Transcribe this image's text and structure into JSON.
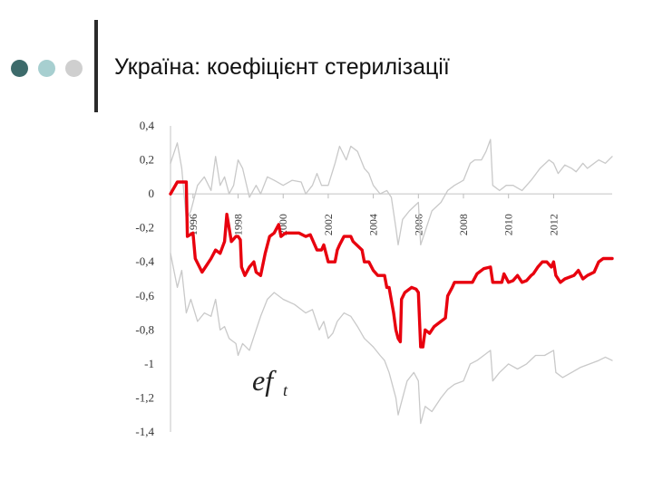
{
  "slide": {
    "title": "Україна: коефіцієнт стерилізації",
    "bullet_colors": [
      "#3d6b6b",
      "#a7cfd0",
      "#cfcfcf"
    ]
  },
  "chart_data": {
    "type": "line",
    "title": "",
    "xlabel": "",
    "ylabel": "",
    "annotation": {
      "main": "ef",
      "sub": "t"
    },
    "ylim": [
      -1.4,
      0.4
    ],
    "xlim": [
      1995,
      2014.6
    ],
    "y_ticks": [
      0.4,
      0.2,
      0,
      -0.2,
      -0.4,
      -0.6,
      -0.8,
      -1,
      -1.2,
      -1.4
    ],
    "y_tick_labels": [
      "0,4",
      "0,2",
      "0",
      "-0,2",
      "-0,4",
      "-0,6",
      "-0,8",
      "-1",
      "-1,2",
      "-1,4"
    ],
    "x_ticks": [
      1996,
      1998,
      2000,
      2002,
      2004,
      2006,
      2008,
      2010,
      2012
    ],
    "x_tick_labels": [
      "1996",
      "1998",
      "2000",
      "2002",
      "2004",
      "2006",
      "2008",
      "2010",
      "2012"
    ],
    "grid": false,
    "legend": "none",
    "series": [
      {
        "color": "#e8000e",
        "role": "estimate",
        "points": [
          [
            1995.0,
            0.0
          ],
          [
            1995.3,
            0.07
          ],
          [
            1995.7,
            0.07
          ],
          [
            1995.75,
            -0.25
          ],
          [
            1996.0,
            -0.23
          ],
          [
            1996.1,
            -0.38
          ],
          [
            1996.4,
            -0.46
          ],
          [
            1996.6,
            -0.42
          ],
          [
            1996.8,
            -0.38
          ],
          [
            1997.0,
            -0.33
          ],
          [
            1997.2,
            -0.35
          ],
          [
            1997.4,
            -0.28
          ],
          [
            1997.5,
            -0.12
          ],
          [
            1997.7,
            -0.28
          ],
          [
            1997.9,
            -0.25
          ],
          [
            1998.0,
            -0.25
          ],
          [
            1998.1,
            -0.27
          ],
          [
            1998.15,
            -0.43
          ],
          [
            1998.3,
            -0.48
          ],
          [
            1998.5,
            -0.43
          ],
          [
            1998.7,
            -0.4
          ],
          [
            1998.8,
            -0.46
          ],
          [
            1999.0,
            -0.48
          ],
          [
            1999.2,
            -0.35
          ],
          [
            1999.4,
            -0.25
          ],
          [
            1999.6,
            -0.23
          ],
          [
            1999.8,
            -0.18
          ],
          [
            1999.9,
            -0.25
          ],
          [
            2000.1,
            -0.23
          ],
          [
            2000.7,
            -0.23
          ],
          [
            2001.0,
            -0.25
          ],
          [
            2001.2,
            -0.24
          ],
          [
            2001.5,
            -0.33
          ],
          [
            2001.7,
            -0.33
          ],
          [
            2001.8,
            -0.3
          ],
          [
            2002.0,
            -0.4
          ],
          [
            2002.3,
            -0.4
          ],
          [
            2002.4,
            -0.33
          ],
          [
            2002.5,
            -0.3
          ],
          [
            2002.7,
            -0.25
          ],
          [
            2003.0,
            -0.25
          ],
          [
            2003.1,
            -0.28
          ],
          [
            2003.5,
            -0.33
          ],
          [
            2003.6,
            -0.4
          ],
          [
            2003.8,
            -0.4
          ],
          [
            2004.0,
            -0.45
          ],
          [
            2004.2,
            -0.48
          ],
          [
            2004.5,
            -0.48
          ],
          [
            2004.6,
            -0.55
          ],
          [
            2004.7,
            -0.55
          ],
          [
            2004.9,
            -0.7
          ],
          [
            2005.0,
            -0.8
          ],
          [
            2005.1,
            -0.85
          ],
          [
            2005.2,
            -0.87
          ],
          [
            2005.25,
            -0.62
          ],
          [
            2005.4,
            -0.58
          ],
          [
            2005.7,
            -0.55
          ],
          [
            2005.9,
            -0.56
          ],
          [
            2006.0,
            -0.58
          ],
          [
            2006.1,
            -0.9
          ],
          [
            2006.2,
            -0.9
          ],
          [
            2006.3,
            -0.8
          ],
          [
            2006.5,
            -0.82
          ],
          [
            2006.7,
            -0.78
          ],
          [
            2007.0,
            -0.75
          ],
          [
            2007.2,
            -0.73
          ],
          [
            2007.3,
            -0.6
          ],
          [
            2007.5,
            -0.55
          ],
          [
            2007.6,
            -0.52
          ],
          [
            2008.0,
            -0.52
          ],
          [
            2008.4,
            -0.52
          ],
          [
            2008.6,
            -0.47
          ],
          [
            2008.9,
            -0.44
          ],
          [
            2009.2,
            -0.43
          ],
          [
            2009.3,
            -0.52
          ],
          [
            2009.7,
            -0.52
          ],
          [
            2009.8,
            -0.47
          ],
          [
            2010.0,
            -0.52
          ],
          [
            2010.2,
            -0.51
          ],
          [
            2010.4,
            -0.48
          ],
          [
            2010.6,
            -0.52
          ],
          [
            2010.8,
            -0.51
          ],
          [
            2011.0,
            -0.48
          ],
          [
            2011.1,
            -0.47
          ],
          [
            2011.3,
            -0.43
          ],
          [
            2011.5,
            -0.4
          ],
          [
            2011.7,
            -0.4
          ],
          [
            2011.9,
            -0.43
          ],
          [
            2012.0,
            -0.4
          ],
          [
            2012.1,
            -0.48
          ],
          [
            2012.3,
            -0.52
          ],
          [
            2012.5,
            -0.5
          ],
          [
            2012.9,
            -0.48
          ],
          [
            2013.1,
            -0.45
          ],
          [
            2013.3,
            -0.5
          ],
          [
            2013.5,
            -0.48
          ],
          [
            2013.8,
            -0.46
          ],
          [
            2014.0,
            -0.4
          ],
          [
            2014.2,
            -0.38
          ],
          [
            2014.6,
            -0.38
          ]
        ]
      },
      {
        "color": "#c9c9c9",
        "role": "upper band",
        "points": [
          [
            1995.0,
            0.18
          ],
          [
            1995.3,
            0.3
          ],
          [
            1995.5,
            0.15
          ],
          [
            1995.7,
            -0.15
          ],
          [
            1995.9,
            -0.1
          ],
          [
            1996.2,
            0.05
          ],
          [
            1996.5,
            0.1
          ],
          [
            1996.8,
            0.02
          ],
          [
            1997.0,
            0.22
          ],
          [
            1997.2,
            0.05
          ],
          [
            1997.4,
            0.1
          ],
          [
            1997.6,
            0.0
          ],
          [
            1997.8,
            0.05
          ],
          [
            1998.0,
            0.2
          ],
          [
            1998.2,
            0.15
          ],
          [
            1998.5,
            -0.02
          ],
          [
            1998.8,
            0.05
          ],
          [
            1999.0,
            0.0
          ],
          [
            1999.3,
            0.1
          ],
          [
            1999.6,
            0.08
          ],
          [
            2000.0,
            0.05
          ],
          [
            2000.4,
            0.08
          ],
          [
            2000.8,
            0.07
          ],
          [
            2001.0,
            0.0
          ],
          [
            2001.3,
            0.05
          ],
          [
            2001.5,
            0.12
          ],
          [
            2001.7,
            0.05
          ],
          [
            2002.0,
            0.05
          ],
          [
            2002.3,
            0.18
          ],
          [
            2002.5,
            0.28
          ],
          [
            2002.8,
            0.2
          ],
          [
            2003.0,
            0.28
          ],
          [
            2003.3,
            0.25
          ],
          [
            2003.6,
            0.15
          ],
          [
            2003.8,
            0.12
          ],
          [
            2004.0,
            0.05
          ],
          [
            2004.3,
            0.0
          ],
          [
            2004.6,
            0.02
          ],
          [
            2004.8,
            -0.02
          ],
          [
            2005.0,
            -0.2
          ],
          [
            2005.1,
            -0.3
          ],
          [
            2005.3,
            -0.15
          ],
          [
            2005.6,
            -0.1
          ],
          [
            2006.0,
            -0.05
          ],
          [
            2006.1,
            -0.3
          ],
          [
            2006.3,
            -0.22
          ],
          [
            2006.6,
            -0.1
          ],
          [
            2007.0,
            -0.05
          ],
          [
            2007.3,
            0.02
          ],
          [
            2007.6,
            0.05
          ],
          [
            2008.0,
            0.08
          ],
          [
            2008.3,
            0.18
          ],
          [
            2008.5,
            0.2
          ],
          [
            2008.8,
            0.2
          ],
          [
            2009.0,
            0.25
          ],
          [
            2009.2,
            0.32
          ],
          [
            2009.3,
            0.05
          ],
          [
            2009.6,
            0.02
          ],
          [
            2009.9,
            0.05
          ],
          [
            2010.2,
            0.05
          ],
          [
            2010.6,
            0.02
          ],
          [
            2011.0,
            0.08
          ],
          [
            2011.4,
            0.15
          ],
          [
            2011.8,
            0.2
          ],
          [
            2012.0,
            0.18
          ],
          [
            2012.2,
            0.12
          ],
          [
            2012.5,
            0.17
          ],
          [
            2012.8,
            0.15
          ],
          [
            2013.0,
            0.13
          ],
          [
            2013.3,
            0.18
          ],
          [
            2013.5,
            0.15
          ],
          [
            2013.8,
            0.18
          ],
          [
            2014.0,
            0.2
          ],
          [
            2014.3,
            0.18
          ],
          [
            2014.6,
            0.22
          ]
        ]
      },
      {
        "color": "#c9c9c9",
        "role": "lower band",
        "points": [
          [
            1995.0,
            -0.35
          ],
          [
            1995.3,
            -0.55
          ],
          [
            1995.5,
            -0.45
          ],
          [
            1995.7,
            -0.7
          ],
          [
            1995.9,
            -0.62
          ],
          [
            1996.2,
            -0.75
          ],
          [
            1996.5,
            -0.7
          ],
          [
            1996.8,
            -0.72
          ],
          [
            1997.0,
            -0.62
          ],
          [
            1997.2,
            -0.8
          ],
          [
            1997.4,
            -0.78
          ],
          [
            1997.6,
            -0.85
          ],
          [
            1997.9,
            -0.88
          ],
          [
            1998.0,
            -0.95
          ],
          [
            1998.2,
            -0.88
          ],
          [
            1998.5,
            -0.92
          ],
          [
            1998.8,
            -0.8
          ],
          [
            1999.0,
            -0.72
          ],
          [
            1999.3,
            -0.62
          ],
          [
            1999.6,
            -0.58
          ],
          [
            2000.0,
            -0.62
          ],
          [
            2000.5,
            -0.65
          ],
          [
            2001.0,
            -0.7
          ],
          [
            2001.3,
            -0.68
          ],
          [
            2001.6,
            -0.8
          ],
          [
            2001.8,
            -0.75
          ],
          [
            2002.0,
            -0.85
          ],
          [
            2002.2,
            -0.82
          ],
          [
            2002.4,
            -0.75
          ],
          [
            2002.7,
            -0.7
          ],
          [
            2003.0,
            -0.72
          ],
          [
            2003.3,
            -0.78
          ],
          [
            2003.6,
            -0.85
          ],
          [
            2004.0,
            -0.9
          ],
          [
            2004.3,
            -0.95
          ],
          [
            2004.5,
            -0.98
          ],
          [
            2004.7,
            -1.05
          ],
          [
            2005.0,
            -1.2
          ],
          [
            2005.1,
            -1.3
          ],
          [
            2005.2,
            -1.25
          ],
          [
            2005.5,
            -1.1
          ],
          [
            2005.8,
            -1.05
          ],
          [
            2006.0,
            -1.1
          ],
          [
            2006.1,
            -1.35
          ],
          [
            2006.3,
            -1.25
          ],
          [
            2006.6,
            -1.28
          ],
          [
            2007.0,
            -1.2
          ],
          [
            2007.3,
            -1.15
          ],
          [
            2007.6,
            -1.12
          ],
          [
            2008.0,
            -1.1
          ],
          [
            2008.3,
            -1.0
          ],
          [
            2008.6,
            -0.98
          ],
          [
            2008.9,
            -0.95
          ],
          [
            2009.2,
            -0.92
          ],
          [
            2009.3,
            -1.1
          ],
          [
            2009.6,
            -1.05
          ],
          [
            2010.0,
            -1.0
          ],
          [
            2010.4,
            -1.03
          ],
          [
            2010.8,
            -1.0
          ],
          [
            2011.2,
            -0.95
          ],
          [
            2011.6,
            -0.95
          ],
          [
            2012.0,
            -0.92
          ],
          [
            2012.1,
            -1.05
          ],
          [
            2012.4,
            -1.08
          ],
          [
            2012.8,
            -1.05
          ],
          [
            2013.2,
            -1.02
          ],
          [
            2013.6,
            -1.0
          ],
          [
            2014.0,
            -0.98
          ],
          [
            2014.3,
            -0.96
          ],
          [
            2014.6,
            -0.98
          ]
        ]
      }
    ]
  }
}
